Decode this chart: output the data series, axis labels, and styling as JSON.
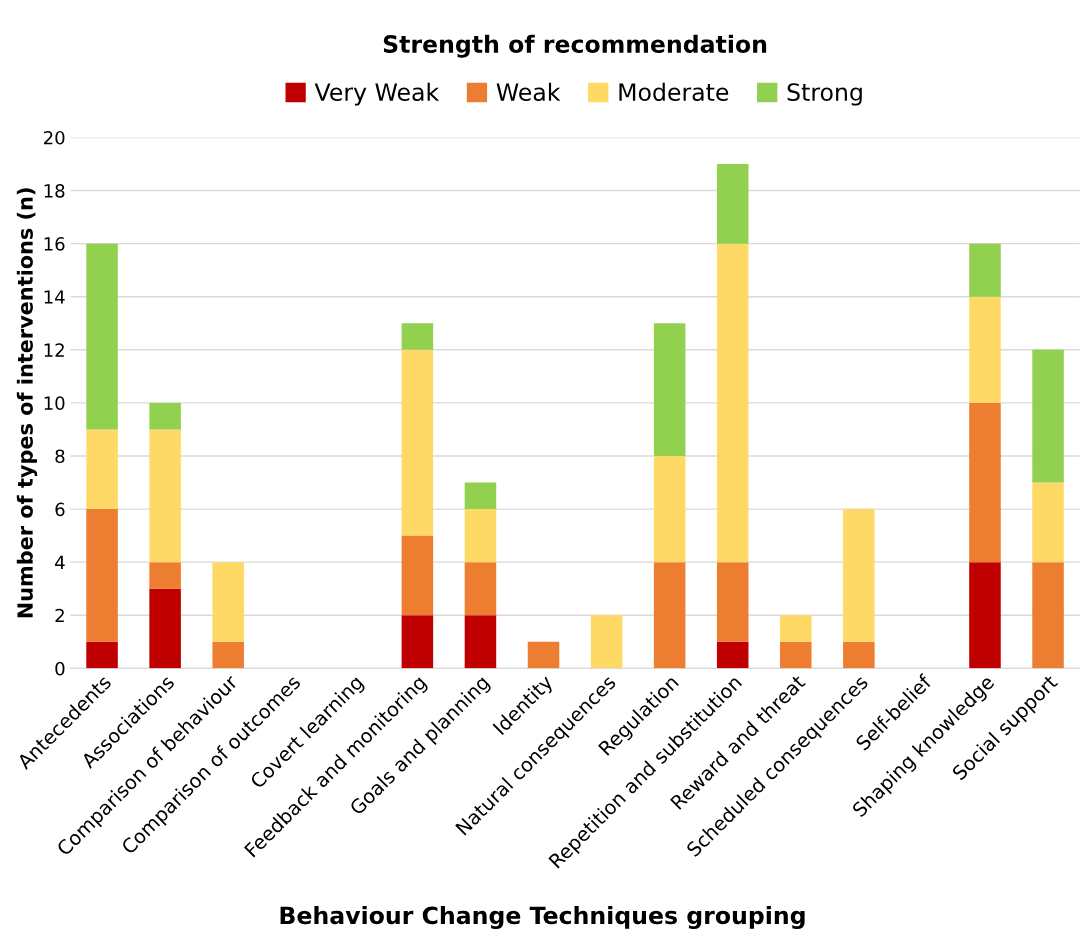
{
  "chart_data": {
    "type": "bar",
    "stacked": true,
    "legend_title": "Strength of recommendation",
    "xlabel": "Behaviour Change Techniques grouping",
    "ylabel": "Number of types of interventions (n)",
    "categories": [
      "Antecedents",
      "Associations",
      "Comparison of behaviour",
      "Comparison of outcomes",
      "Covert learning",
      "Feedback and monitoring",
      "Goals and planning",
      "Identity",
      "Natural consequences",
      "Regulation",
      "Repetition and substitution",
      "Reward and threat",
      "Scheduled consequences",
      "Self-belief",
      "Shaping knowledge",
      "Social support"
    ],
    "series": [
      {
        "name": "Very Weak",
        "color": "#c00000",
        "values": [
          1,
          3,
          0,
          0,
          0,
          2,
          2,
          0,
          0,
          0,
          1,
          0,
          0,
          0,
          4,
          0
        ]
      },
      {
        "name": "Weak",
        "color": "#ed7d31",
        "values": [
          5,
          1,
          1,
          0,
          0,
          3,
          2,
          1,
          0,
          4,
          3,
          1,
          1,
          0,
          6,
          4
        ]
      },
      {
        "name": "Moderate",
        "color": "#ffd966",
        "values": [
          3,
          5,
          3,
          0,
          0,
          7,
          2,
          0,
          2,
          4,
          12,
          1,
          5,
          0,
          4,
          3
        ]
      },
      {
        "name": "Strong",
        "color": "#92d050",
        "values": [
          7,
          1,
          0,
          0,
          0,
          1,
          1,
          0,
          0,
          5,
          3,
          0,
          0,
          0,
          2,
          5
        ]
      }
    ],
    "ylim": [
      0,
      20
    ],
    "yticks": [
      0,
      2,
      4,
      6,
      8,
      10,
      12,
      14,
      16,
      18,
      20
    ],
    "grid": "y",
    "legend": "top"
  }
}
